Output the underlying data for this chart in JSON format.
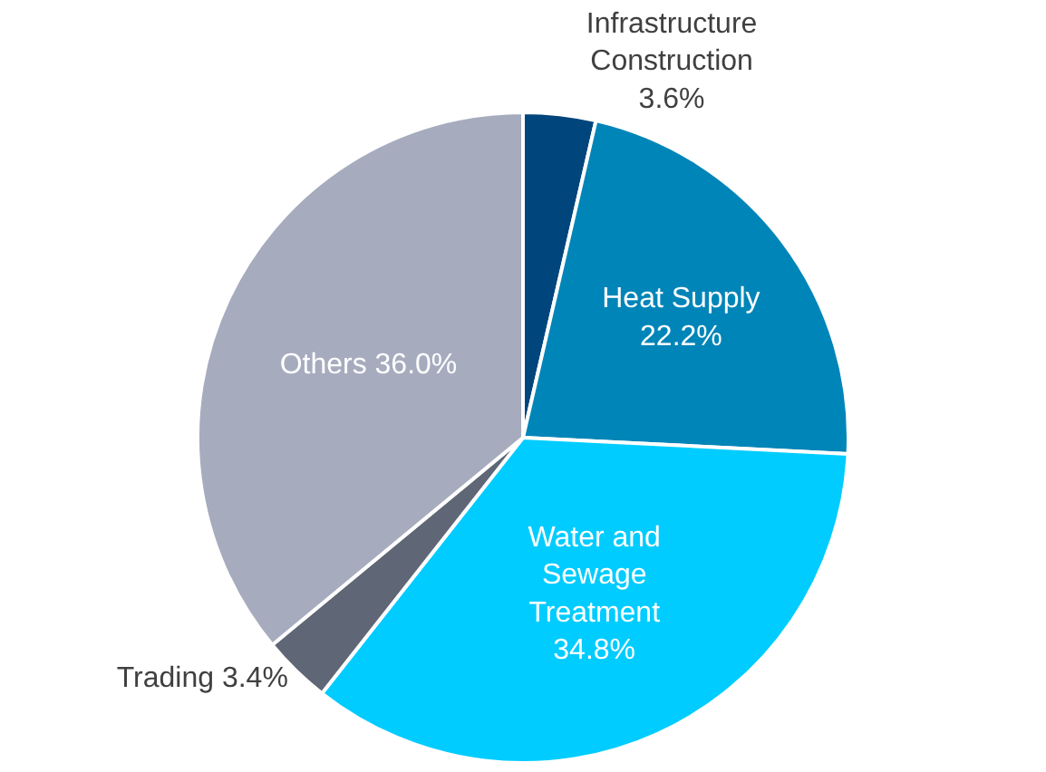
{
  "chart_data": {
    "type": "pie",
    "categories": [
      "Infrastructure Construction",
      "Heat Supply",
      "Water and Sewage Treatment",
      "Trading",
      "Others"
    ],
    "values": [
      3.6,
      22.2,
      34.8,
      3.4,
      36.0
    ],
    "colors": [
      "#00457c",
      "#0085b8",
      "#00ccff",
      "#5f6675",
      "#a6abbe"
    ],
    "value_labels": [
      "3.6%",
      "22.2%",
      "34.8%",
      "3.4%",
      "36.0%"
    ],
    "legend": false
  }
}
